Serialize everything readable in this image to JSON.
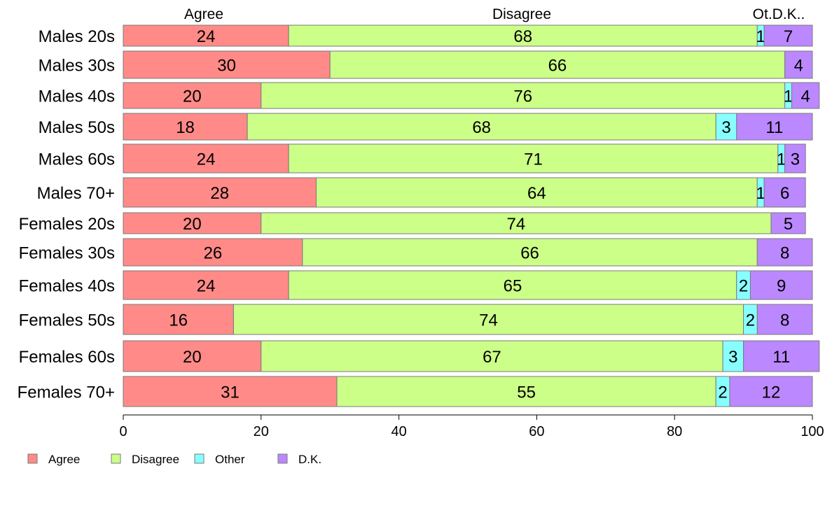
{
  "chart_data": {
    "type": "bar",
    "orientation": "horizontal",
    "stacked": true,
    "categories": [
      "Males 20s",
      "Males 30s",
      "Males 40s",
      "Males 50s",
      "Males 60s",
      "Males 70+",
      "Females 20s",
      "Females 30s",
      "Females 40s",
      "Females 50s",
      "Females 60s",
      "Females 70+"
    ],
    "series": [
      {
        "name": "Agree",
        "color": "#ff8a88",
        "values": [
          24,
          30,
          20,
          18,
          24,
          28,
          20,
          26,
          24,
          16,
          20,
          31
        ]
      },
      {
        "name": "Disagree",
        "color": "#ccff88",
        "values": [
          68,
          66,
          76,
          68,
          71,
          64,
          74,
          66,
          65,
          74,
          67,
          55
        ]
      },
      {
        "name": "Other",
        "color": "#88ffff",
        "values": [
          1,
          0,
          1,
          3,
          1,
          1,
          0,
          0,
          2,
          2,
          3,
          2
        ]
      },
      {
        "name": "D.K.",
        "color": "#bb88ff",
        "values": [
          7,
          4,
          4,
          11,
          3,
          6,
          5,
          8,
          9,
          8,
          11,
          12
        ]
      }
    ],
    "top_labels": {
      "agree": "Agree",
      "disagree": "Disagree",
      "other_dk": "Ot.D.K.."
    },
    "xlim": [
      0,
      100
    ],
    "xticks": [
      0,
      20,
      40,
      60,
      80,
      100
    ],
    "legend_position": "bottom-left",
    "grid": false
  }
}
